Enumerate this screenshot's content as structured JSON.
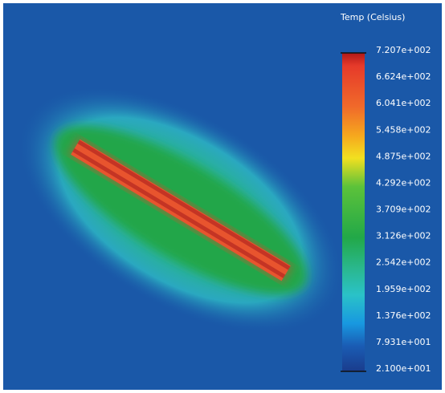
{
  "legend": {
    "title": "Temp (Celsius)",
    "labels": [
      "7.207e+002",
      "6.624e+002",
      "6.041e+002",
      "5.458e+002",
      "4.875e+002",
      "4.292e+002",
      "3.709e+002",
      "3.126e+002",
      "2.542e+002",
      "1.959e+002",
      "1.376e+002",
      "7.931e+001",
      "2.100e+001"
    ]
  }
}
